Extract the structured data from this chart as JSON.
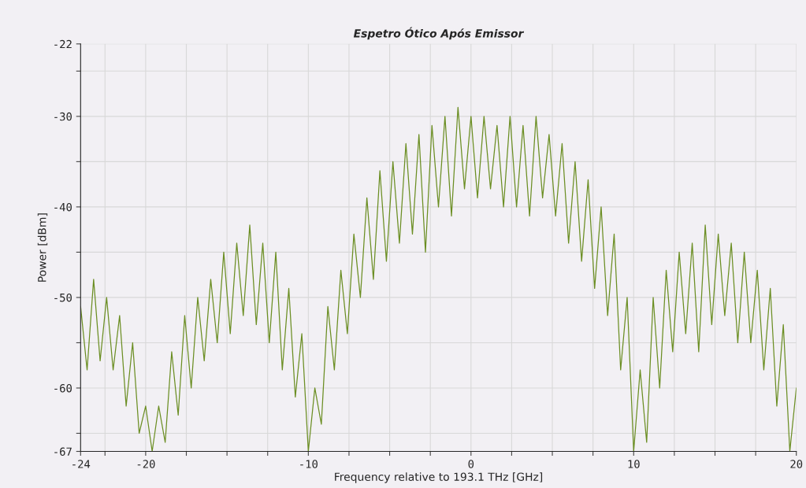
{
  "chart_data": {
    "type": "line",
    "title": "Espetro Ótico Após Emissor",
    "xlabel": "Frequency relative to 193.1 THz [GHz]",
    "ylabel": "Power [dBm]",
    "x": [
      -24.0,
      -23.6,
      -23.2,
      -22.8,
      -22.4,
      -22.0,
      -21.6,
      -21.2,
      -20.8,
      -20.4,
      -20.0,
      -19.6,
      -19.2,
      -18.8,
      -18.4,
      -18.0,
      -17.6,
      -17.2,
      -16.8,
      -16.4,
      -16.0,
      -15.6,
      -15.2,
      -14.8,
      -14.4,
      -14.0,
      -13.6,
      -13.2,
      -12.8,
      -12.4,
      -12.0,
      -11.6,
      -11.2,
      -10.8,
      -10.4,
      -10.0,
      -9.6,
      -9.2,
      -8.8,
      -8.4,
      -8.0,
      -7.6,
      -7.2,
      -6.8,
      -6.4,
      -6.0,
      -5.6,
      -5.2,
      -4.8,
      -4.4,
      -4.0,
      -3.6,
      -3.2,
      -2.8,
      -2.4,
      -2.0,
      -1.6,
      -1.2,
      -0.8,
      -0.4,
      0.0,
      0.4,
      0.8,
      1.2,
      1.6,
      2.0,
      2.4,
      2.8,
      3.2,
      3.6,
      4.0,
      4.4,
      4.8,
      5.2,
      5.6,
      6.0,
      6.4,
      6.8,
      7.2,
      7.6,
      8.0,
      8.4,
      8.8,
      9.2,
      9.6,
      10.0,
      10.4,
      10.8,
      11.2,
      11.6,
      12.0,
      12.4,
      12.8,
      13.2,
      13.6,
      14.0,
      14.4,
      14.8,
      15.2,
      15.6,
      16.0,
      16.4,
      16.8,
      17.2,
      17.6,
      18.0,
      18.4,
      18.8,
      19.2,
      19.6,
      20.0
    ],
    "series": [
      {
        "color": "#6b8e23",
        "values": [
          -51,
          -58,
          -48,
          -57,
          -50,
          -58,
          -52,
          -62,
          -55,
          -65,
          -62,
          -67,
          -62,
          -66,
          -56,
          -63,
          -52,
          -60,
          -50,
          -57,
          -48,
          -55,
          -45,
          -54,
          -44,
          -52,
          -42,
          -53,
          -44,
          -55,
          -45,
          -58,
          -49,
          -61,
          -54,
          -67,
          -60,
          -64,
          -51,
          -58,
          -47,
          -54,
          -43,
          -50,
          -39,
          -48,
          -36,
          -46,
          -35,
          -44,
          -33,
          -43,
          -32,
          -45,
          -31,
          -40,
          -30,
          -41,
          -29,
          -38,
          -30,
          -39,
          -30,
          -38,
          -31,
          -40,
          -30,
          -40,
          -31,
          -41,
          -30,
          -39,
          -32,
          -41,
          -33,
          -44,
          -35,
          -46,
          -37,
          -49,
          -40,
          -52,
          -43,
          -58,
          -50,
          -67,
          -58,
          -66,
          -50,
          -60,
          -47,
          -56,
          -45,
          -54,
          -44,
          -56,
          -42,
          -53,
          -43,
          -52,
          -44,
          -55,
          -45,
          -55,
          -47,
          -58,
          -49,
          -62,
          -53,
          -67,
          -60
        ]
      }
    ],
    "xlim": [
      -24,
      20
    ],
    "ylim": [
      -67,
      -22
    ],
    "xticks": [
      -24,
      {
        "value": -22.5,
        "label": null
      },
      -20,
      {
        "value": -17.5,
        "label": null
      },
      {
        "value": -15,
        "label": null
      },
      {
        "value": -12.5,
        "label": null
      },
      -10,
      {
        "value": -7.5,
        "label": null
      },
      {
        "value": -5,
        "label": null
      },
      {
        "value": -2.5,
        "label": null
      },
      0,
      {
        "value": 2.5,
        "label": null
      },
      {
        "value": 5,
        "label": null
      },
      {
        "value": 7.5,
        "label": null
      },
      10,
      {
        "value": 12.5,
        "label": null
      },
      {
        "value": 15,
        "label": null
      },
      {
        "value": 17.5,
        "label": null
      },
      20
    ],
    "yticks": [
      -67,
      {
        "value": -65,
        "label": null
      },
      -60,
      {
        "value": -55,
        "label": null
      },
      -50,
      {
        "value": -45,
        "label": null
      },
      -40,
      {
        "value": -35,
        "label": null
      },
      -30,
      {
        "value": -25,
        "label": null
      },
      -22
    ],
    "grid": true,
    "marker": "none",
    "line_style": "solid",
    "legend": false
  }
}
